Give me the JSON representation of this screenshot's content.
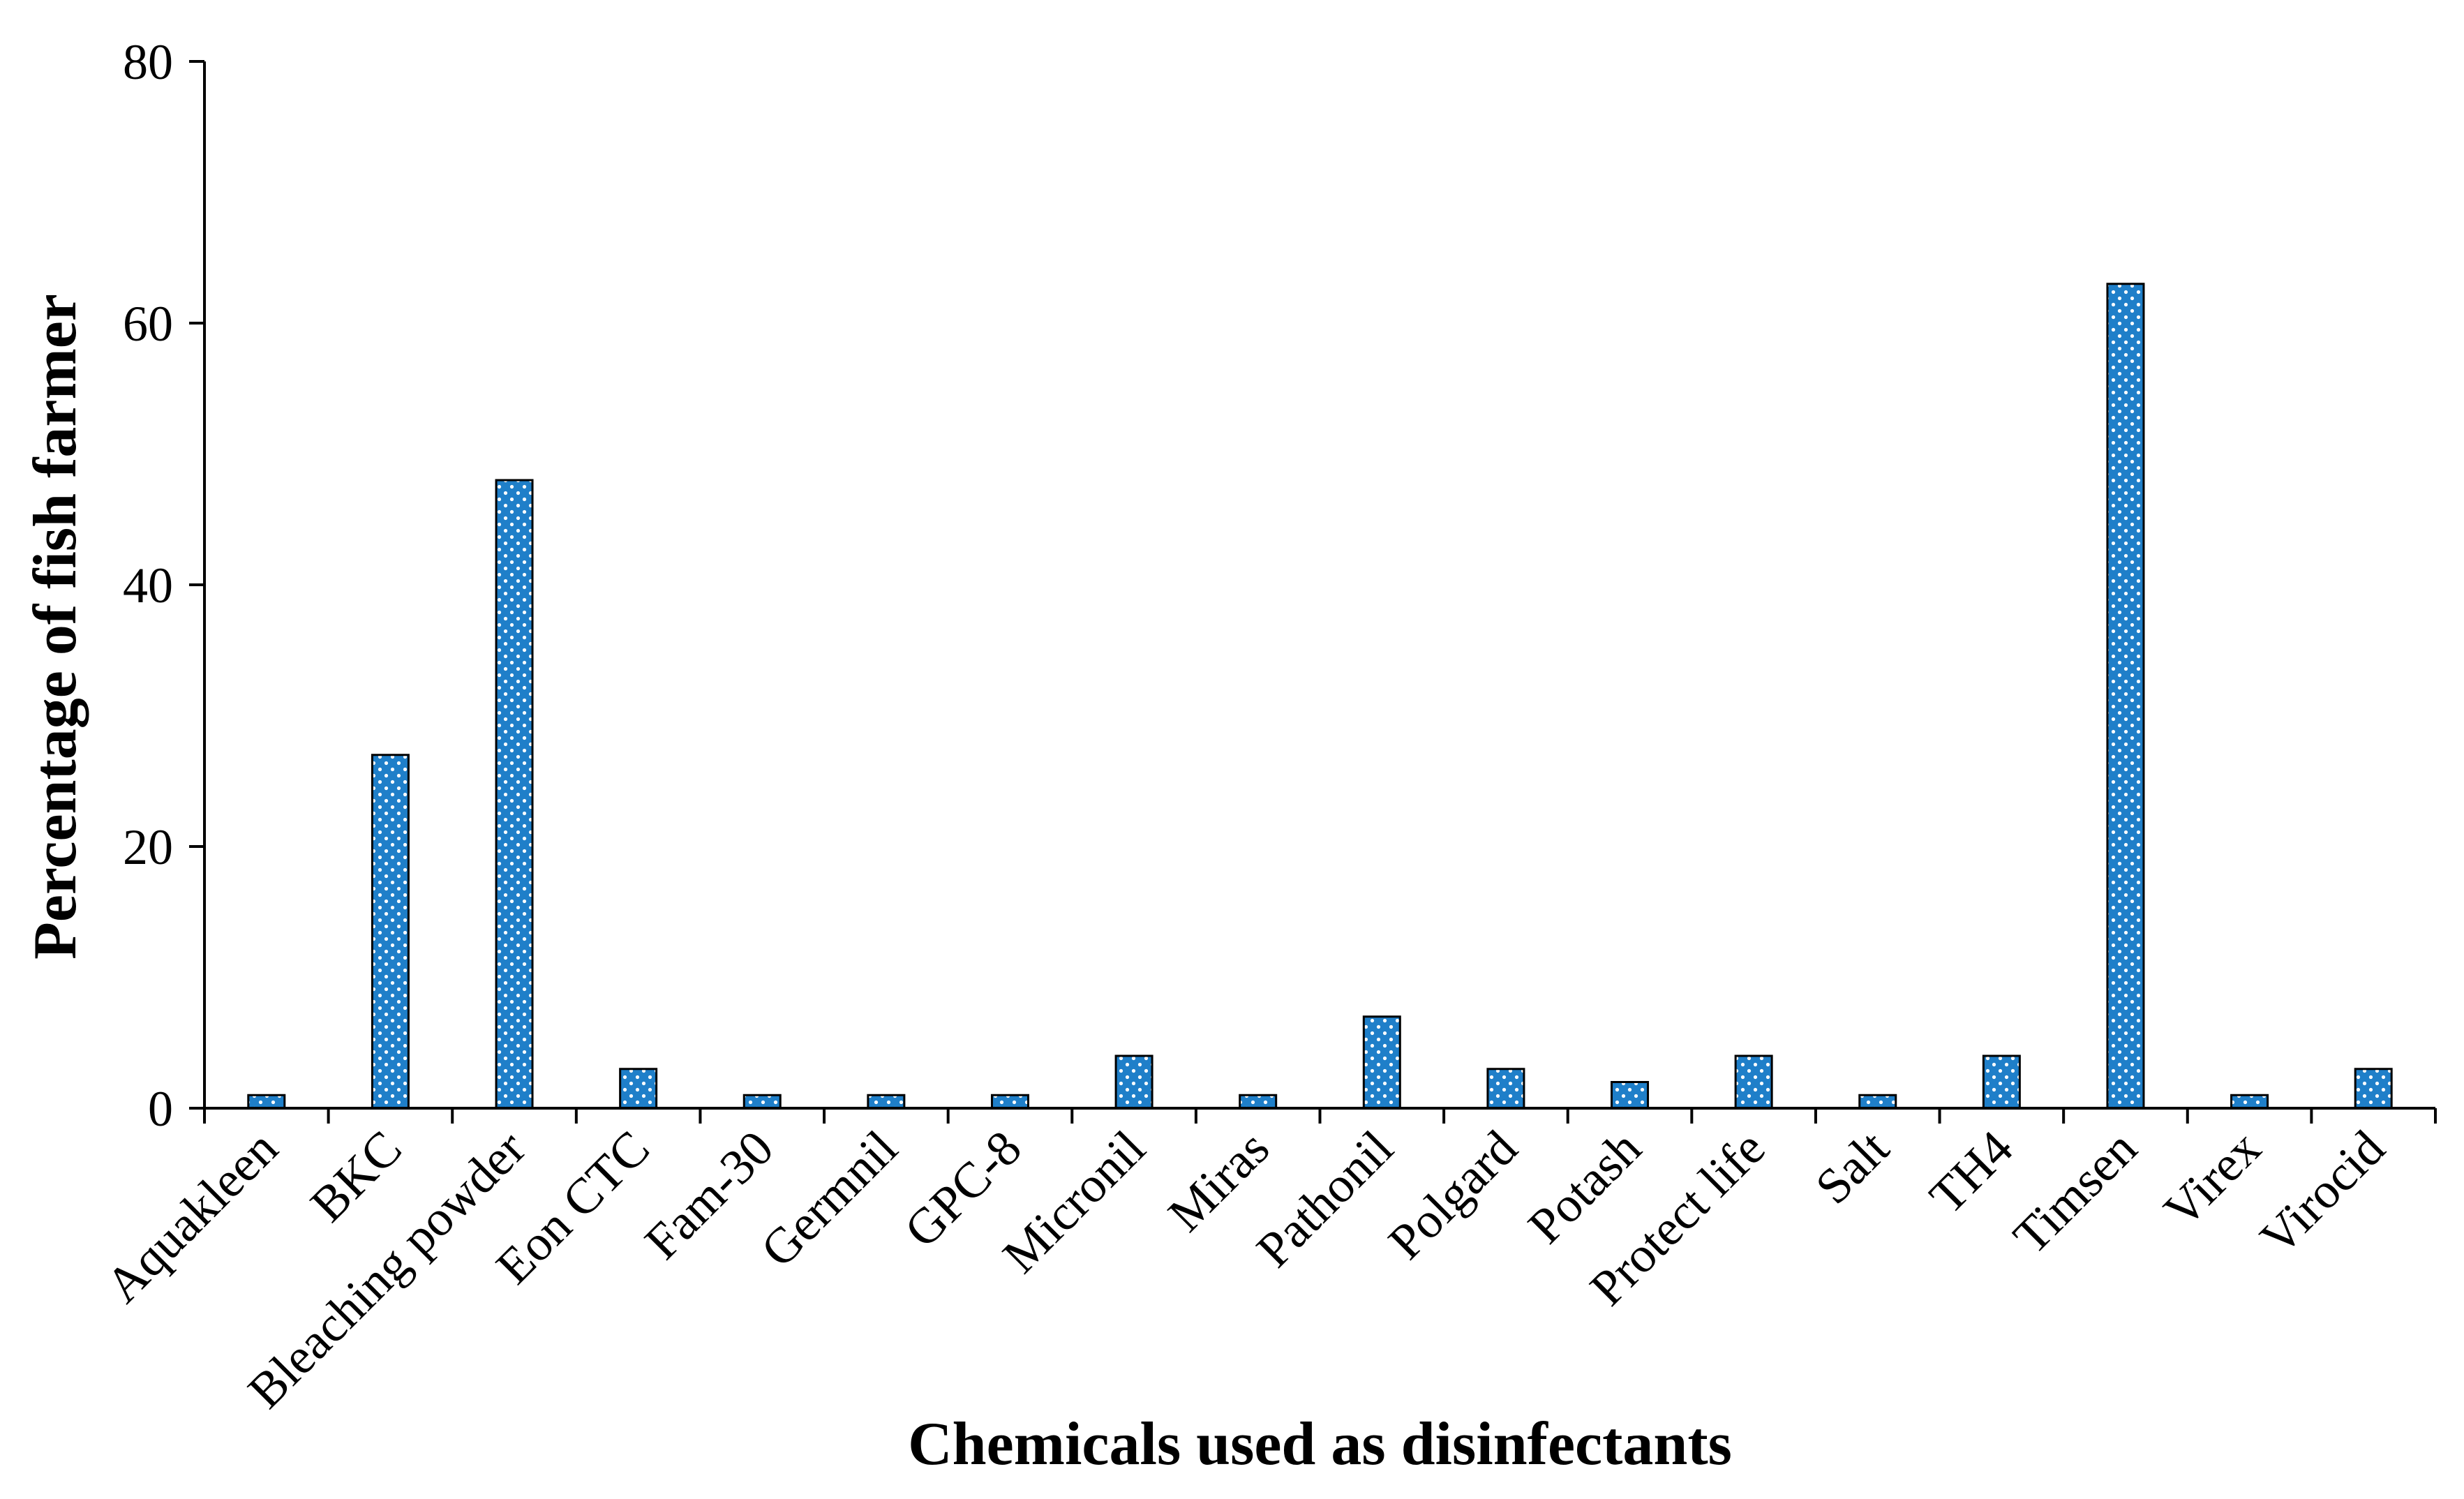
{
  "chart_data": {
    "type": "bar",
    "title": "",
    "xlabel": "Chemicals used as disinfectants",
    "ylabel": "Percentage of fish farmer",
    "ylim": [
      0,
      80
    ],
    "yticks": [
      0,
      20,
      40,
      60,
      80
    ],
    "grid": false,
    "legend": "none",
    "bar_color": "#1f7fc9",
    "dot_color": "#ffffff",
    "categories": [
      "Aquakleen",
      "BKC",
      "Bleaching powder",
      "Eon CTC",
      "Fam-30",
      "Germnil",
      "GPC-8",
      "Micronil",
      "Miras",
      "Pathonil",
      "Polgard",
      "Potash",
      "Protect life",
      "Salt",
      "TH4",
      "Timsen",
      "Virex",
      "Virocid"
    ],
    "values": [
      1,
      27,
      48,
      3,
      1,
      1,
      1,
      4,
      1,
      7,
      3,
      2,
      4,
      1,
      4,
      63,
      1,
      3
    ]
  }
}
